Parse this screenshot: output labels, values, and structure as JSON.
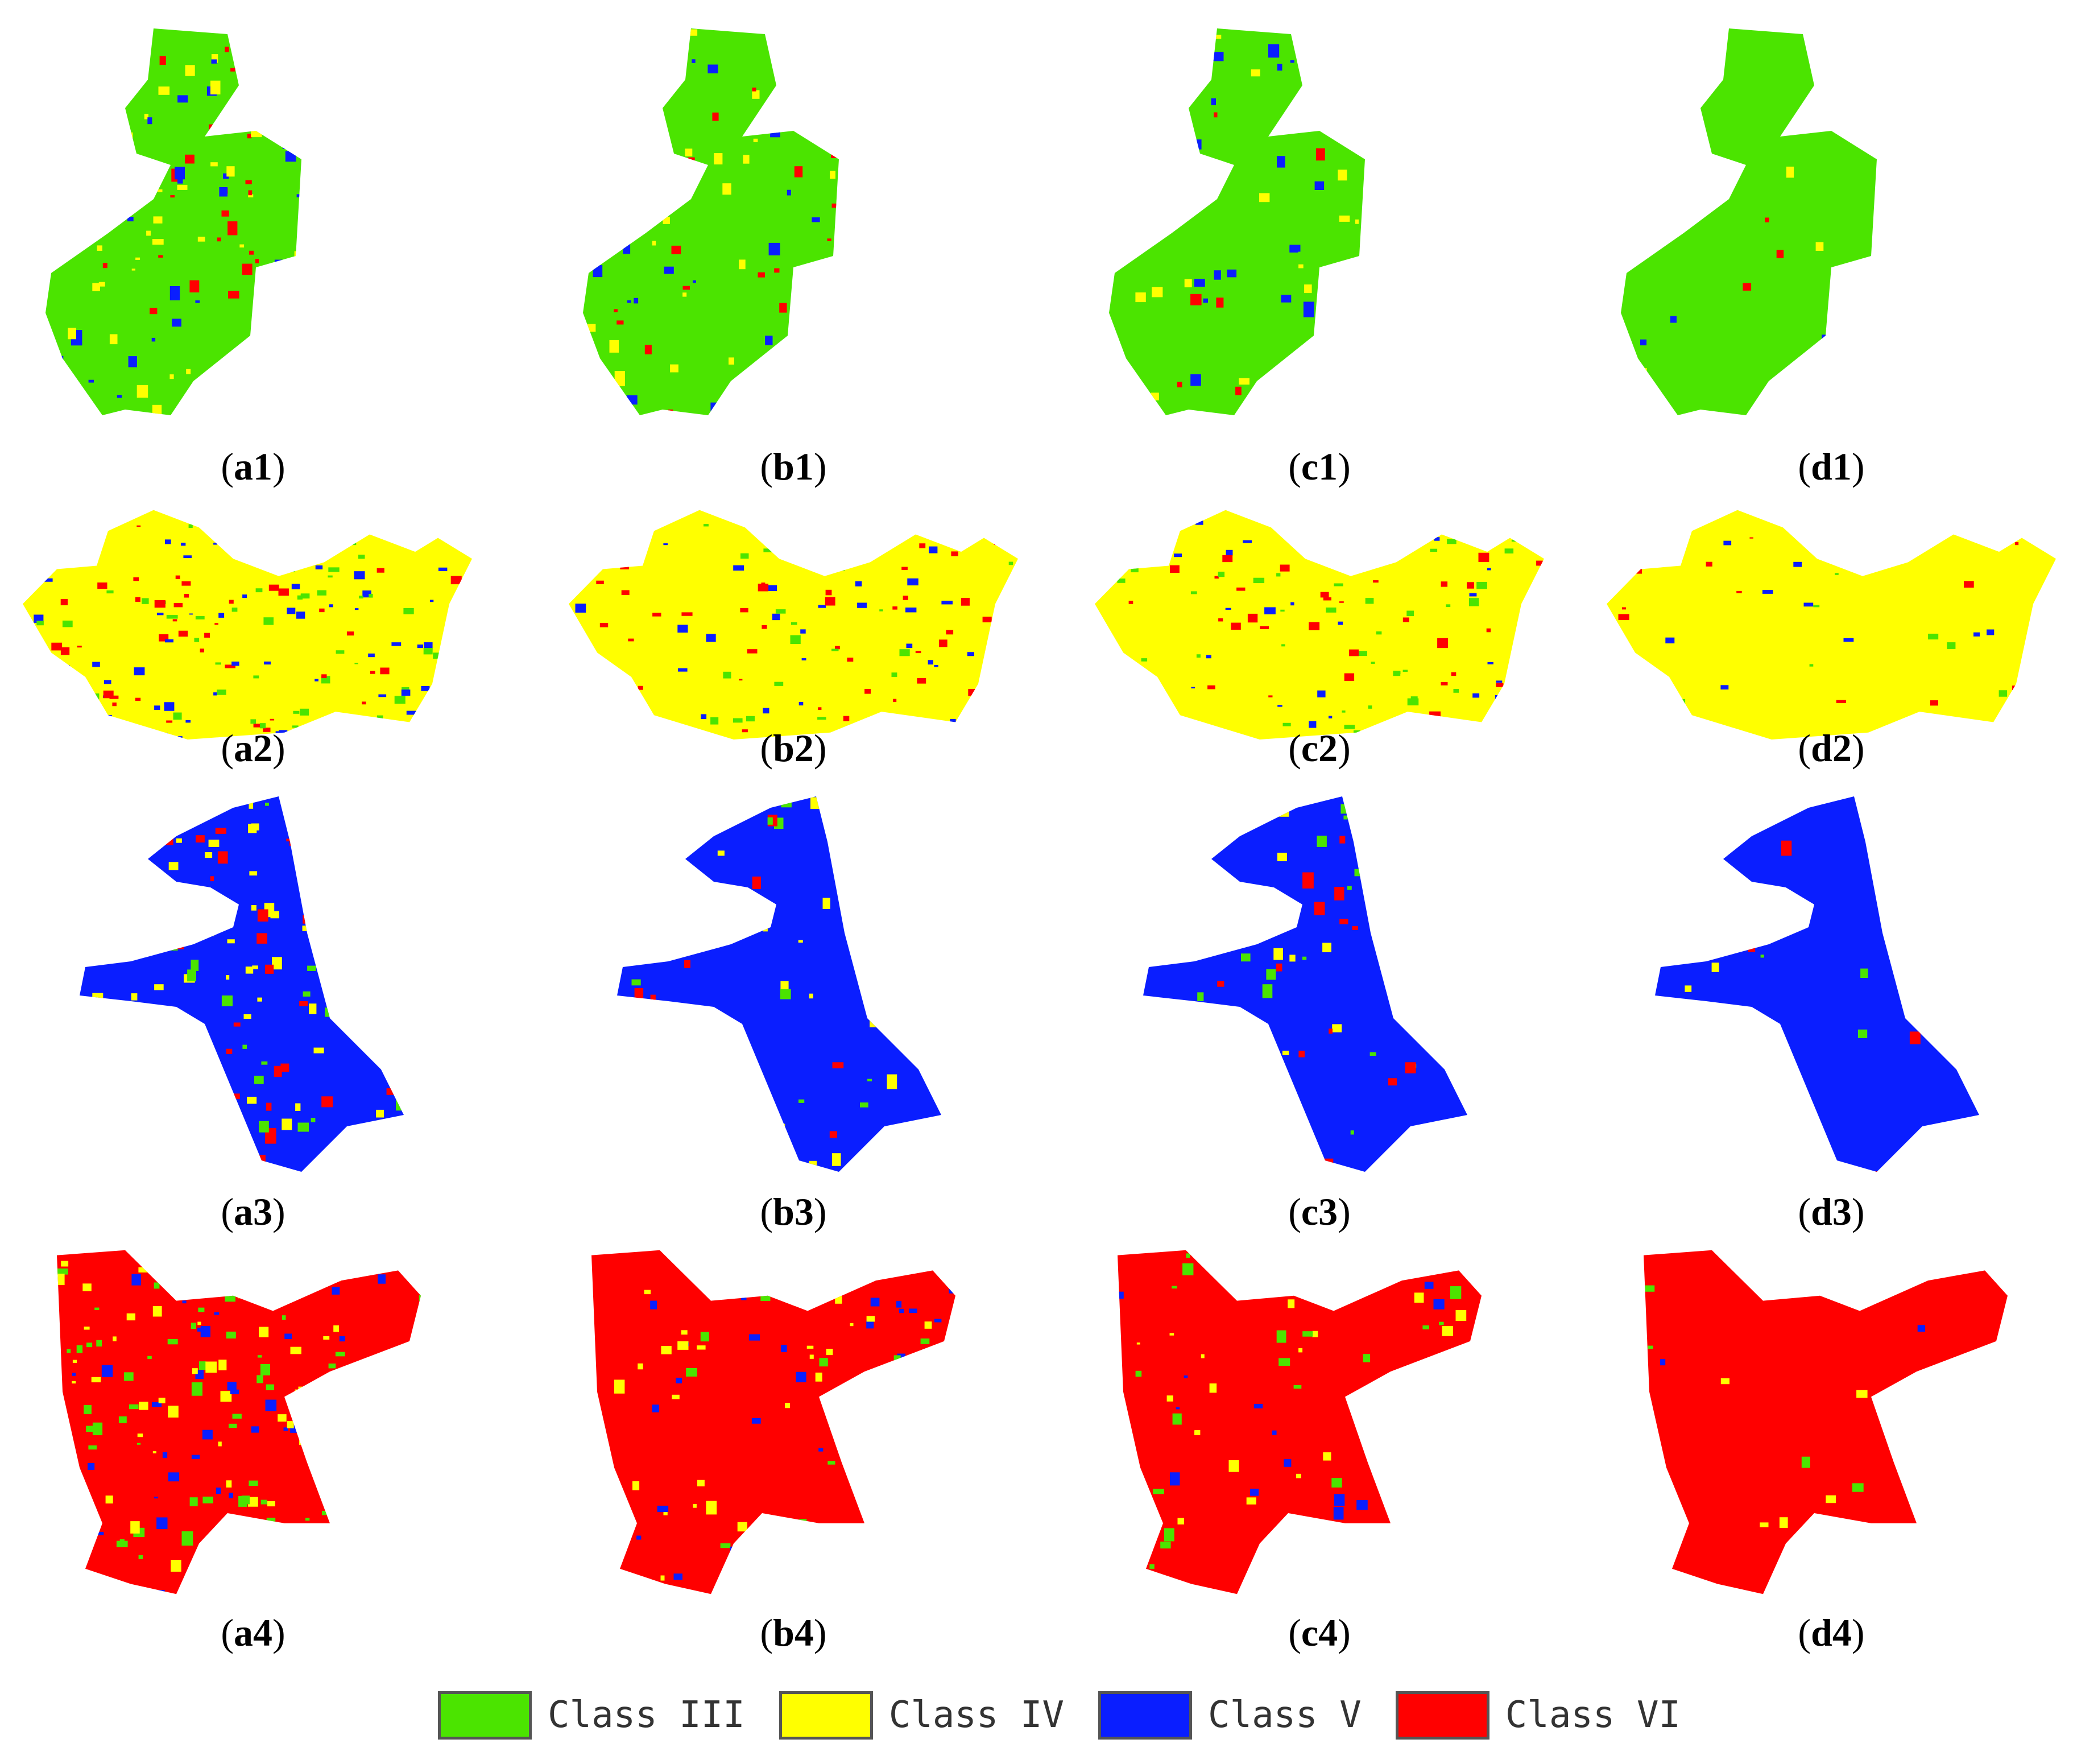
{
  "colors": {
    "class_iii": "#4be400",
    "class_iv": "#ffff00",
    "class_v": "#0a1eff",
    "class_vi": "#ff0000"
  },
  "rows": [
    {
      "base_class": "class_iii",
      "panels": [
        {
          "label": "a1",
          "noise": "high"
        },
        {
          "label": "b1",
          "noise": "medium"
        },
        {
          "label": "c1",
          "noise": "medium"
        },
        {
          "label": "d1",
          "noise": "low"
        }
      ]
    },
    {
      "base_class": "class_iv",
      "panels": [
        {
          "label": "a2",
          "noise": "high"
        },
        {
          "label": "b2",
          "noise": "medium"
        },
        {
          "label": "c2",
          "noise": "medium"
        },
        {
          "label": "d2",
          "noise": "low"
        }
      ]
    },
    {
      "base_class": "class_v",
      "panels": [
        {
          "label": "a3",
          "noise": "high"
        },
        {
          "label": "b3",
          "noise": "medium"
        },
        {
          "label": "c3",
          "noise": "medium"
        },
        {
          "label": "d3",
          "noise": "low"
        }
      ]
    },
    {
      "base_class": "class_vi",
      "panels": [
        {
          "label": "a4",
          "noise": "high"
        },
        {
          "label": "b4",
          "noise": "medium"
        },
        {
          "label": "c4",
          "noise": "medium"
        },
        {
          "label": "d4",
          "noise": "low"
        }
      ]
    }
  ],
  "legend": [
    {
      "label": "Class  III",
      "color_key": "class_iii"
    },
    {
      "label": "Class  IV",
      "color_key": "class_iv"
    },
    {
      "label": "Class  V",
      "color_key": "class_v"
    },
    {
      "label": "Class  VI",
      "color_key": "class_vi"
    }
  ]
}
